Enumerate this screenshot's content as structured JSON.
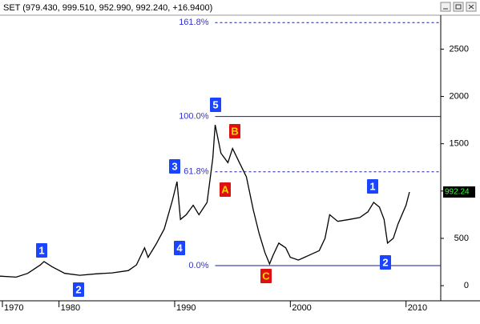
{
  "chart_data": {
    "type": "line",
    "title": "SET (979.430, 999.510, 952.990, 992.240, +16.9400)",
    "x": [
      1974.9,
      1976.3,
      1977.3,
      1978.4,
      1978.7,
      1979.4,
      1980.5,
      1981.8,
      1983.2,
      1984.6,
      1986.0,
      1986.7,
      1987.4,
      1987.7,
      1988.4,
      1989.1,
      1989.8,
      1990.2,
      1990.5,
      1991.0,
      1991.6,
      1992.1,
      1992.8,
      1993.3,
      1993.5,
      1994.0,
      1994.6,
      1995.0,
      1995.6,
      1996.2,
      1996.8,
      1997.3,
      1997.8,
      1998.2,
      1998.5,
      1999.0,
      1999.6,
      2000.0,
      2000.7,
      2001.6,
      2002.5,
      2003.0,
      2003.4,
      2004.1,
      2005.1,
      2006.0,
      2006.7,
      2007.2,
      2007.7,
      2008.1,
      2008.4,
      2008.9,
      2009.3,
      2010.0,
      2010.3
    ],
    "series": [
      {
        "name": "SET",
        "color": "#000000",
        "values": [
          100,
          90,
          130,
          220,
          255,
          200,
          130,
          110,
          125,
          135,
          160,
          220,
          400,
          300,
          440,
          600,
          900,
          1100,
          700,
          750,
          850,
          750,
          880,
          1350,
          1700,
          1400,
          1300,
          1450,
          1300,
          1150,
          800,
          550,
          350,
          230,
          320,
          450,
          400,
          300,
          270,
          320,
          370,
          500,
          750,
          680,
          700,
          720,
          780,
          880,
          830,
          700,
          450,
          500,
          650,
          850,
          990
        ]
      }
    ],
    "xlim": [
      1974.9,
      2013.0
    ],
    "xticks": [
      1970,
      1980,
      1990,
      2000,
      2010
    ],
    "ylim": [
      -160,
      2850
    ],
    "yticks": [
      0,
      500,
      1000,
      1500,
      2000,
      2500
    ],
    "last_label": "992.24",
    "fib_start": 1993.5,
    "fib_levels": [
      {
        "label": "0.0%",
        "value": 212,
        "dashed": false
      },
      {
        "label": "61.8%",
        "value": 1203,
        "dashed": true
      },
      {
        "label": "100.0%",
        "value": 1788,
        "dashed": false
      },
      {
        "label": "161.8%",
        "value": 2780,
        "dashed": true
      }
    ],
    "waves": [
      {
        "text": "1",
        "kind": "impulse"
      },
      {
        "text": "2",
        "kind": "impulse"
      },
      {
        "text": "3",
        "kind": "impulse"
      },
      {
        "text": "4",
        "kind": "impulse"
      },
      {
        "text": "5",
        "kind": "impulse"
      },
      {
        "text": "A",
        "kind": "corrective"
      },
      {
        "text": "B",
        "kind": "corrective"
      },
      {
        "text": "C",
        "kind": "corrective"
      },
      {
        "text": "1",
        "kind": "impulse"
      },
      {
        "text": "2",
        "kind": "impulse"
      }
    ]
  }
}
